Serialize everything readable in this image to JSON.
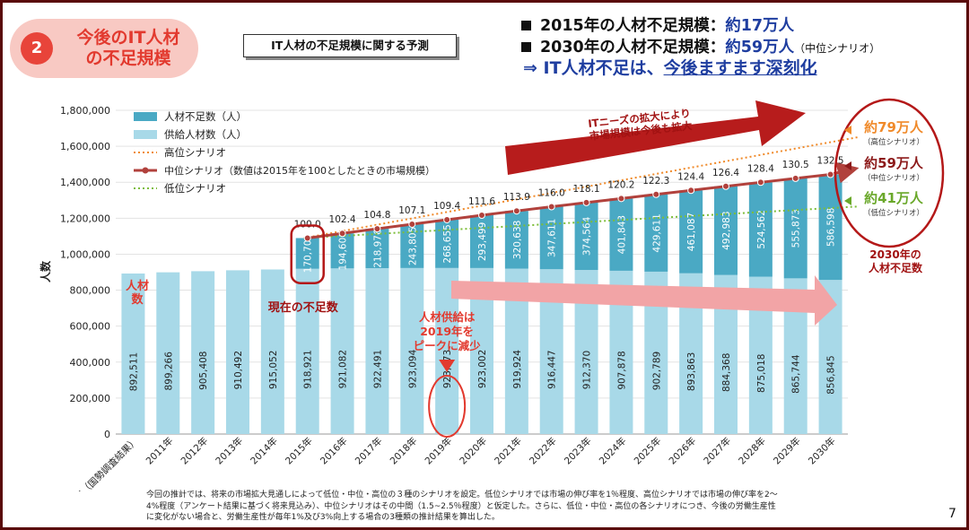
{
  "badge": {
    "number": "2",
    "title": "今後のIT人材\nの不足規模"
  },
  "chart_title_box": "IT人材の不足規模に関する予測",
  "headlines": {
    "line1": {
      "label": "2015年の人材不足規模：",
      "value": "約17万人"
    },
    "line2": {
      "label": "2030年の人材不足規模：",
      "value": "約59万人",
      "suffix": "（中位シナリオ）"
    },
    "line3": {
      "prefix": "⇒ IT人材不足は、",
      "emphasis": "今後ますます深刻化"
    }
  },
  "colors": {
    "shortage": "#4aa9c4",
    "supply": "#a8d9e8",
    "high": "#f08a2a",
    "mid": "#b1413c",
    "low": "#7dbd3a",
    "accent_red": "#e23a2f",
    "dark_red": "#a11212",
    "navy": "#1f3ea0"
  },
  "chart_data": {
    "type": "bar",
    "stacked": true,
    "title": "IT人材の不足規模に関する予測",
    "ylabel": "人数",
    "ylim": [
      0,
      1800000
    ],
    "yticks": [
      "0",
      "200,000",
      "400,000",
      "600,000",
      "800,000",
      "1,000,000",
      "1,200,000",
      "1,400,000",
      "1,600,000",
      "1,800,000"
    ],
    "categories": [
      "2010年（国勢調査結果）",
      "2011年",
      "2012年",
      "2013年",
      "2014年",
      "2015年",
      "2016年",
      "2017年",
      "2018年",
      "2019年",
      "2020年",
      "2021年",
      "2022年",
      "2023年",
      "2024年",
      "2025年",
      "2026年",
      "2027年",
      "2028年",
      "2029年",
      "2030年"
    ],
    "supply": [
      892511,
      899266,
      905408,
      910492,
      915052,
      918921,
      921082,
      922491,
      923094,
      923273,
      923002,
      919924,
      916447,
      912370,
      907878,
      902789,
      893863,
      884368,
      875018,
      865744,
      856845
    ],
    "supply_labels": [
      "892,511",
      "899,266",
      "905,408",
      "910,492",
      "915,052",
      "918,921",
      "921,082",
      "922,491",
      "923,094",
      "923,273",
      "923,002",
      "919,924",
      "916,447",
      "912,370",
      "907,878",
      "902,789",
      "893,863",
      "884,368",
      "875,018",
      "865,744",
      "856,845"
    ],
    "shortage": [
      null,
      null,
      null,
      null,
      null,
      170700,
      194608,
      218976,
      243805,
      268655,
      293499,
      320638,
      347611,
      374564,
      401843,
      429611,
      461087,
      492983,
      524562,
      555873,
      586598
    ],
    "shortage_labels": [
      "",
      "",
      "",
      "",
      "",
      "170,700",
      "194,608",
      "218,976",
      "243,805",
      "268,655",
      "293,499",
      "320,638",
      "347,611",
      "374,564",
      "401,843",
      "429,611",
      "461,087",
      "492,983",
      "524,562",
      "555,873",
      "586,598"
    ],
    "mid_index": [
      null,
      null,
      null,
      null,
      null,
      100.0,
      102.4,
      104.8,
      107.1,
      109.4,
      111.6,
      113.9,
      116.0,
      118.1,
      120.2,
      122.3,
      124.4,
      126.4,
      128.4,
      130.5,
      132.5
    ],
    "mid_index_labels": [
      "",
      "",
      "",
      "",
      "",
      "100.0",
      "102.4",
      "104.8",
      "107.1",
      "109.4",
      "111.6",
      "113.9",
      "116.0",
      "118.1",
      "120.2",
      "122.3",
      "124.4",
      "126.4",
      "128.4",
      "130.5",
      "132.5"
    ],
    "high_scenario_2030": 1650000,
    "low_scenario_2030": 1265000,
    "legend": {
      "shortage": "人材不足数（人）",
      "supply": "供給人材数（人）",
      "high": "高位シナリオ",
      "mid": "中位シナリオ（数値は2015年を100としたときの市場規模）",
      "low": "低位シナリオ"
    },
    "annotations": {
      "supply_axis": "人材数",
      "current_shortage": "現在の不足数",
      "peak": "人材供給は2019年をピークに減少",
      "it_needs": "ITニーズの拡大により市場規模は今後も拡大",
      "shortage_2030": "2030年の人材不足数"
    },
    "scenarios_2030": [
      {
        "value": "約79万人",
        "label": "（高位シナリオ）"
      },
      {
        "value": "約59万人",
        "label": "（中位シナリオ）"
      },
      {
        "value": "約41万人",
        "label": "（低位シナリオ）"
      }
    ]
  },
  "notes": {
    "line1": "今回の推計では、将来の市場拡大見通しによって低位・中位・高位の３種のシナリオを設定。低位シナリオでは市場の伸び率を1％程度、高位シナリオでは市場の伸び率を2〜",
    "line2": "4%程度（アンケート結果に基づく将来見込み）、中位シナリオはその中間（1.5~2.5％程度）と仮定した。さらに、低位・中位・高位の各シナリオにつき、今後の労働生産性",
    "line3": "に変化がない場合と、労働生産性が毎年1%及び3%向上する場合の3種類の推計結果を算出した。"
  },
  "page_number": "7"
}
